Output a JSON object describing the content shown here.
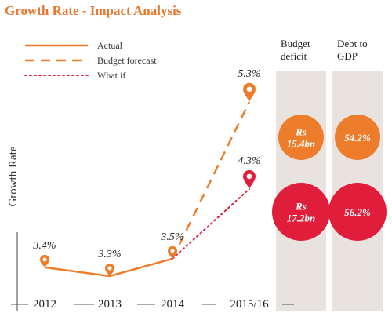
{
  "title": "Growth Rate - Impact Analysis",
  "colors": {
    "orange": "#ee7d2b",
    "red": "#e01e3c",
    "column_bg": "#e8e3df"
  },
  "chart_data": {
    "type": "line",
    "ylabel": "Growth Rate",
    "categories": [
      "2012",
      "2013",
      "2014",
      "2015/16"
    ],
    "legend": [
      {
        "label": "Actual",
        "style": "solid"
      },
      {
        "label": "Budget forecast",
        "style": "dashed"
      },
      {
        "label": "What if",
        "style": "dotted"
      }
    ],
    "series": [
      {
        "name": "Actual",
        "style": "solid",
        "color": "#ee7d2b",
        "points": [
          {
            "x": "2012",
            "y": 3.4
          },
          {
            "x": "2013",
            "y": 3.3
          },
          {
            "x": "2014",
            "y": 3.5
          }
        ]
      },
      {
        "name": "Budget forecast",
        "style": "dashed",
        "color": "#ee7d2b",
        "points": [
          {
            "x": "2014",
            "y": 3.5
          },
          {
            "x": "2015/16",
            "y": 5.3
          }
        ]
      },
      {
        "name": "What if",
        "style": "dotted",
        "color": "#e01e3c",
        "points": [
          {
            "x": "2014",
            "y": 3.5
          },
          {
            "x": "2015/16",
            "y": 4.3
          }
        ]
      }
    ],
    "data_labels": [
      {
        "x": "2012",
        "y": 3.4,
        "text": "3.4%",
        "color": "#ee7d2b"
      },
      {
        "x": "2013",
        "y": 3.3,
        "text": "3.3%",
        "color": "#ee7d2b"
      },
      {
        "x": "2014",
        "y": 3.5,
        "text": "3.5%",
        "color": "#ee7d2b"
      },
      {
        "x": "2015/16",
        "y": 5.3,
        "text": "5.3%",
        "color": "#ee7d2b"
      },
      {
        "x": "2015/16",
        "y": 4.3,
        "text": "4.3%",
        "color": "#e01e3c"
      }
    ],
    "columns": [
      {
        "header": [
          "Budget",
          "deficit"
        ],
        "values": [
          {
            "scenario": "Budget forecast",
            "lines": [
              "Rs",
              "15.4bn"
            ],
            "color": "#ee7d2b"
          },
          {
            "scenario": "What if",
            "lines": [
              "Rs",
              "17.2bn"
            ],
            "color": "#e01e3c"
          }
        ]
      },
      {
        "header": [
          "Debt to",
          "GDP"
        ],
        "values": [
          {
            "scenario": "Budget forecast",
            "lines": [
              "54.2%"
            ],
            "color": "#ee7d2b"
          },
          {
            "scenario": "What if",
            "lines": [
              "56.2%"
            ],
            "color": "#e01e3c"
          }
        ]
      }
    ]
  }
}
